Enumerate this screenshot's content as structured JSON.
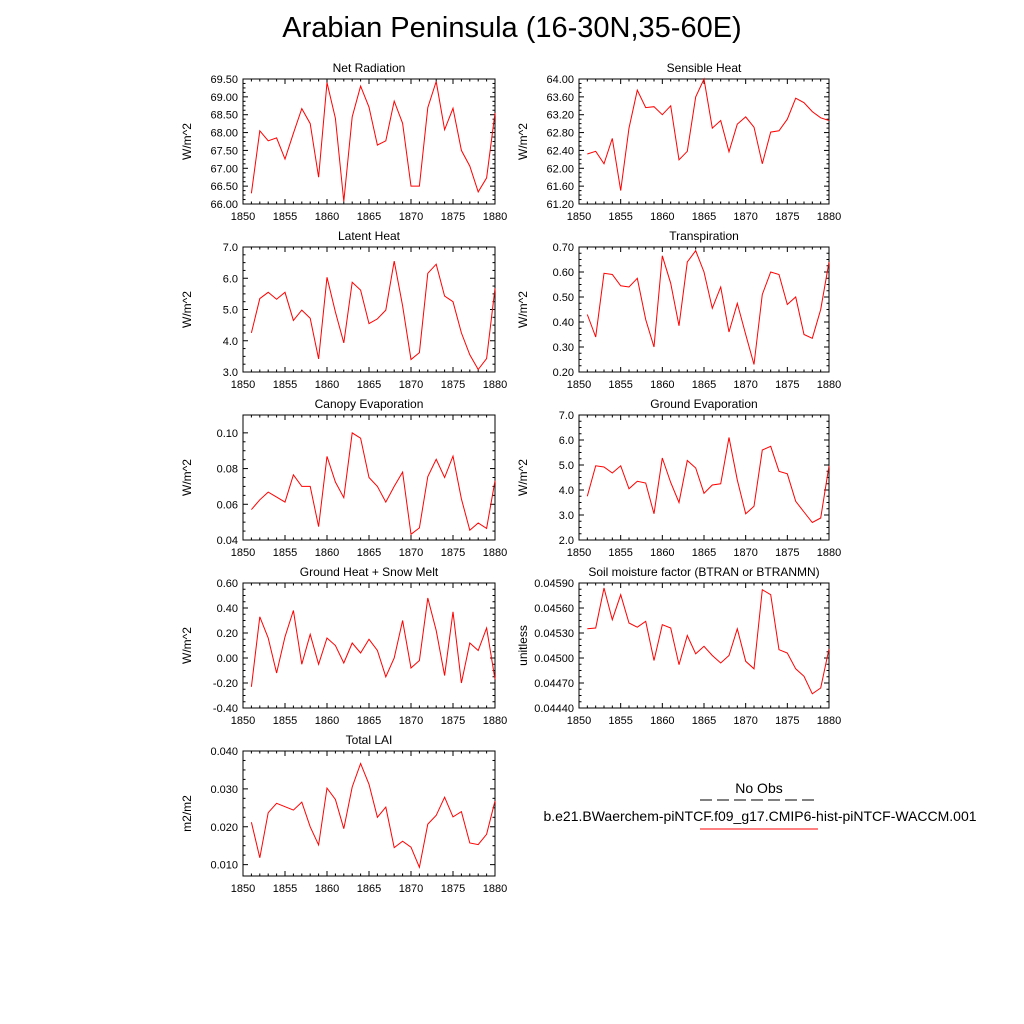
{
  "title": "Arabian Peninsula (16-30N,35-60E)",
  "legend": {
    "obs_label": "No Obs",
    "run_label": "b.e21.BWaerchem-piNTCF.f09_g17.CMIP6-hist-piNTCF-WACCM.001",
    "obs_style": "dashed",
    "run_color": "#ff0000"
  },
  "chart_data": [
    {
      "type": "line",
      "title": "Net Radiation",
      "ylabel": "W/m^2",
      "xlim": [
        1850,
        1880
      ],
      "ylim": [
        66.0,
        69.5
      ],
      "xticks": [
        1850,
        1855,
        1860,
        1865,
        1870,
        1875,
        1880
      ],
      "yticks": [
        "66.00",
        "66.50",
        "67.00",
        "67.50",
        "68.00",
        "68.50",
        "69.00",
        "69.50"
      ],
      "series": [
        {
          "color": "#ff0000",
          "x": [
            1851,
            1852,
            1853,
            1854,
            1855,
            1856,
            1857,
            1858,
            1859,
            1860,
            1861,
            1862,
            1863,
            1864,
            1865,
            1866,
            1867,
            1868,
            1869,
            1870,
            1871,
            1872,
            1873,
            1874,
            1875,
            1876,
            1877,
            1878,
            1879,
            1880
          ],
          "y": [
            66.3,
            68.05,
            67.77,
            67.85,
            67.26,
            67.98,
            68.67,
            68.25,
            66.75,
            69.4,
            68.4,
            66.07,
            68.44,
            69.3,
            68.71,
            67.65,
            67.77,
            68.88,
            68.26,
            66.5,
            66.5,
            68.7,
            69.43,
            68.08,
            68.68,
            67.5,
            67.06,
            66.34,
            66.73,
            68.55
          ]
        }
      ]
    },
    {
      "type": "line",
      "title": "Sensible Heat",
      "ylabel": "W/m^2",
      "xlim": [
        1850,
        1880
      ],
      "ylim": [
        61.2,
        64.0
      ],
      "xticks": [
        1850,
        1855,
        1860,
        1865,
        1870,
        1875,
        1880
      ],
      "yticks": [
        "61.20",
        "61.60",
        "62.00",
        "62.40",
        "62.80",
        "63.20",
        "63.60",
        "64.00"
      ],
      "series": [
        {
          "color": "#ff0000",
          "x": [
            1851,
            1852,
            1853,
            1854,
            1855,
            1856,
            1857,
            1858,
            1859,
            1860,
            1861,
            1862,
            1863,
            1864,
            1865,
            1866,
            1867,
            1868,
            1869,
            1870,
            1871,
            1872,
            1873,
            1874,
            1875,
            1876,
            1877,
            1878,
            1879,
            1880
          ],
          "y": [
            62.32,
            62.38,
            62.1,
            62.67,
            61.5,
            62.9,
            63.75,
            63.36,
            63.38,
            63.2,
            63.4,
            62.19,
            62.38,
            63.6,
            64.0,
            62.9,
            63.07,
            62.37,
            62.99,
            63.15,
            62.92,
            62.1,
            62.81,
            62.84,
            63.1,
            63.57,
            63.47,
            63.27,
            63.13,
            63.07
          ]
        }
      ]
    },
    {
      "type": "line",
      "title": "Latent Heat",
      "ylabel": "W/m^2",
      "xlim": [
        1850,
        1880
      ],
      "ylim": [
        3.0,
        7.0
      ],
      "xticks": [
        1850,
        1855,
        1860,
        1865,
        1870,
        1875,
        1880
      ],
      "yticks": [
        "3.0",
        "4.0",
        "5.0",
        "6.0",
        "7.0"
      ],
      "series": [
        {
          "color": "#ff0000",
          "x": [
            1851,
            1852,
            1853,
            1854,
            1855,
            1856,
            1857,
            1858,
            1859,
            1860,
            1861,
            1862,
            1863,
            1864,
            1865,
            1866,
            1867,
            1868,
            1869,
            1870,
            1871,
            1872,
            1873,
            1874,
            1875,
            1876,
            1877,
            1878,
            1879,
            1880
          ],
          "y": [
            4.25,
            5.35,
            5.55,
            5.33,
            5.55,
            4.65,
            4.98,
            4.72,
            3.42,
            6.03,
            4.92,
            3.93,
            5.87,
            5.62,
            4.55,
            4.7,
            4.98,
            6.55,
            5.12,
            3.4,
            3.62,
            6.16,
            6.45,
            5.43,
            5.25,
            4.25,
            3.55,
            3.08,
            3.43,
            5.68
          ]
        }
      ]
    },
    {
      "type": "line",
      "title": "Transpiration",
      "ylabel": "W/m^2",
      "xlim": [
        1850,
        1880
      ],
      "ylim": [
        0.2,
        0.7
      ],
      "xticks": [
        1850,
        1855,
        1860,
        1865,
        1870,
        1875,
        1880
      ],
      "yticks": [
        "0.20",
        "0.30",
        "0.40",
        "0.50",
        "0.60",
        "0.70"
      ],
      "series": [
        {
          "color": "#ff0000",
          "x": [
            1851,
            1852,
            1853,
            1854,
            1855,
            1856,
            1857,
            1858,
            1859,
            1860,
            1861,
            1862,
            1863,
            1864,
            1865,
            1866,
            1867,
            1868,
            1869,
            1870,
            1871,
            1872,
            1873,
            1874,
            1875,
            1876,
            1877,
            1878,
            1879,
            1880
          ],
          "y": [
            0.43,
            0.34,
            0.595,
            0.59,
            0.545,
            0.54,
            0.575,
            0.41,
            0.3,
            0.665,
            0.555,
            0.385,
            0.64,
            0.685,
            0.6,
            0.455,
            0.54,
            0.36,
            0.475,
            0.35,
            0.23,
            0.51,
            0.6,
            0.59,
            0.47,
            0.5,
            0.35,
            0.335,
            0.45,
            0.64
          ]
        }
      ]
    },
    {
      "type": "line",
      "title": "Canopy Evaporation",
      "ylabel": "W/m^2",
      "xlim": [
        1850,
        1880
      ],
      "ylim": [
        0.04,
        0.11
      ],
      "xticks": [
        1850,
        1855,
        1860,
        1865,
        1870,
        1875,
        1880
      ],
      "yticks": [
        "0.04",
        "0.06",
        "0.08",
        "0.10"
      ],
      "series": [
        {
          "color": "#ff0000",
          "x": [
            1851,
            1852,
            1853,
            1854,
            1855,
            1856,
            1857,
            1858,
            1859,
            1860,
            1861,
            1862,
            1863,
            1864,
            1865,
            1866,
            1867,
            1868,
            1869,
            1870,
            1871,
            1872,
            1873,
            1874,
            1875,
            1876,
            1877,
            1878,
            1879,
            1880
          ],
          "y": [
            0.057,
            0.0625,
            0.0668,
            0.064,
            0.0612,
            0.0765,
            0.07,
            0.07,
            0.0475,
            0.0868,
            0.0725,
            0.0637,
            0.1,
            0.097,
            0.075,
            0.07,
            0.0612,
            0.07,
            0.078,
            0.0432,
            0.0468,
            0.0755,
            0.0852,
            0.075,
            0.087,
            0.063,
            0.0455,
            0.0495,
            0.0465,
            0.0732
          ]
        }
      ]
    },
    {
      "type": "line",
      "title": "Ground Evaporation",
      "ylabel": "W/m^2",
      "xlim": [
        1850,
        1880
      ],
      "ylim": [
        2.0,
        7.0
      ],
      "xticks": [
        1850,
        1855,
        1860,
        1865,
        1870,
        1875,
        1880
      ],
      "yticks": [
        "2.0",
        "3.0",
        "4.0",
        "5.0",
        "6.0",
        "7.0"
      ],
      "series": [
        {
          "color": "#ff0000",
          "x": [
            1851,
            1852,
            1853,
            1854,
            1855,
            1856,
            1857,
            1858,
            1859,
            1860,
            1861,
            1862,
            1863,
            1864,
            1865,
            1866,
            1867,
            1868,
            1869,
            1870,
            1871,
            1872,
            1873,
            1874,
            1875,
            1876,
            1877,
            1878,
            1879,
            1880
          ],
          "y": [
            3.75,
            4.97,
            4.92,
            4.68,
            4.97,
            4.05,
            4.35,
            4.28,
            3.05,
            5.28,
            4.3,
            3.5,
            5.18,
            4.88,
            3.87,
            4.2,
            4.25,
            6.1,
            4.4,
            3.05,
            3.35,
            5.6,
            5.75,
            4.75,
            4.65,
            3.55,
            3.12,
            2.7,
            2.88,
            4.97
          ]
        }
      ]
    },
    {
      "type": "line",
      "title": "Ground Heat + Snow Melt",
      "ylabel": "W/m^2",
      "xlim": [
        1850,
        1880
      ],
      "ylim": [
        -0.4,
        0.6
      ],
      "xticks": [
        1850,
        1855,
        1860,
        1865,
        1870,
        1875,
        1880
      ],
      "yticks": [
        "-0.40",
        "-0.20",
        "0.00",
        "0.20",
        "0.40",
        "0.60"
      ],
      "series": [
        {
          "color": "#ff0000",
          "x": [
            1851,
            1852,
            1853,
            1854,
            1855,
            1856,
            1857,
            1858,
            1859,
            1860,
            1861,
            1862,
            1863,
            1864,
            1865,
            1866,
            1867,
            1868,
            1869,
            1870,
            1871,
            1872,
            1873,
            1874,
            1875,
            1876,
            1877,
            1878,
            1879,
            1880
          ],
          "y": [
            -0.23,
            0.33,
            0.16,
            -0.12,
            0.17,
            0.38,
            -0.05,
            0.19,
            -0.05,
            0.16,
            0.1,
            -0.04,
            0.12,
            0.04,
            0.15,
            0.06,
            -0.15,
            0.0,
            0.3,
            -0.08,
            -0.02,
            0.48,
            0.22,
            -0.14,
            0.37,
            -0.2,
            0.12,
            0.06,
            0.24,
            -0.17
          ]
        }
      ]
    },
    {
      "type": "line",
      "title": "Soil moisture factor (BTRAN or BTRANMN)",
      "ylabel": "unitless",
      "xlim": [
        1850,
        1880
      ],
      "ylim": [
        0.0444,
        0.0459
      ],
      "xticks": [
        1850,
        1855,
        1860,
        1865,
        1870,
        1875,
        1880
      ],
      "yticks": [
        "0.04440",
        "0.04470",
        "0.04500",
        "0.04530",
        "0.04560",
        "0.04590"
      ],
      "series": [
        {
          "color": "#ff0000",
          "x": [
            1851,
            1852,
            1853,
            1854,
            1855,
            1856,
            1857,
            1858,
            1859,
            1860,
            1861,
            1862,
            1863,
            1864,
            1865,
            1866,
            1867,
            1868,
            1869,
            1870,
            1871,
            1872,
            1873,
            1874,
            1875,
            1876,
            1877,
            1878,
            1879,
            1880
          ],
          "y": [
            0.04535,
            0.04536,
            0.04584,
            0.04546,
            0.04576,
            0.04542,
            0.04537,
            0.04544,
            0.04497,
            0.0454,
            0.04536,
            0.04492,
            0.04527,
            0.04505,
            0.04514,
            0.04503,
            0.04494,
            0.04503,
            0.04535,
            0.04496,
            0.04487,
            0.04582,
            0.04576,
            0.0451,
            0.04506,
            0.04487,
            0.04478,
            0.04457,
            0.04464,
            0.04511
          ]
        }
      ]
    },
    {
      "type": "line",
      "title": "Total LAI",
      "ylabel": "m2/m2",
      "xlim": [
        1850,
        1880
      ],
      "ylim": [
        0.007,
        0.04
      ],
      "xticks": [
        1850,
        1855,
        1860,
        1865,
        1870,
        1875,
        1880
      ],
      "yticks": [
        "0.010",
        "0.020",
        "0.030",
        "0.040"
      ],
      "series": [
        {
          "color": "#ff0000",
          "x": [
            1851,
            1852,
            1853,
            1854,
            1855,
            1856,
            1857,
            1858,
            1859,
            1860,
            1861,
            1862,
            1863,
            1864,
            1865,
            1866,
            1867,
            1868,
            1869,
            1870,
            1871,
            1872,
            1873,
            1874,
            1875,
            1876,
            1877,
            1878,
            1879,
            1880
          ],
          "y": [
            0.0212,
            0.0118,
            0.0237,
            0.0262,
            0.0253,
            0.0244,
            0.0265,
            0.02,
            0.0152,
            0.0302,
            0.0272,
            0.0195,
            0.0305,
            0.0367,
            0.0312,
            0.0225,
            0.0252,
            0.0145,
            0.0162,
            0.0146,
            0.0093,
            0.0207,
            0.023,
            0.0278,
            0.0226,
            0.024,
            0.0157,
            0.0153,
            0.018,
            0.0268
          ]
        }
      ]
    }
  ]
}
